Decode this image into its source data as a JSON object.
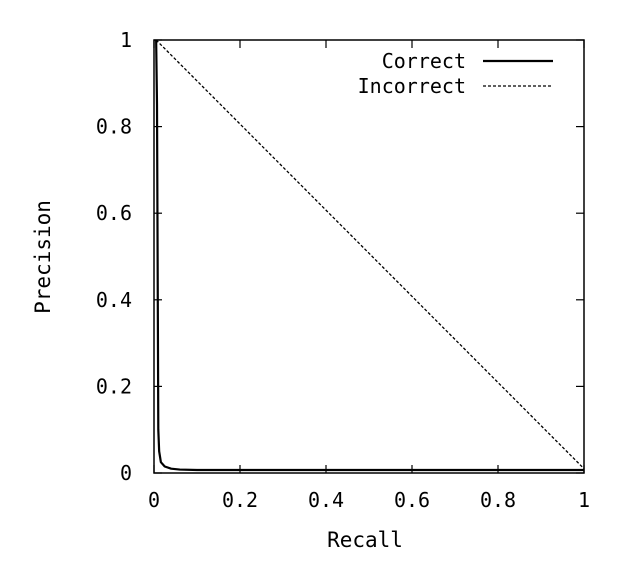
{
  "chart_data": {
    "type": "line",
    "xlabel": "Recall",
    "ylabel": "Precision",
    "xlim": [
      0,
      1
    ],
    "ylim": [
      0,
      1
    ],
    "x_ticks": [
      "0",
      "0.2",
      "0.4",
      "0.6",
      "0.8",
      "1"
    ],
    "y_ticks": [
      "0",
      "0.2",
      "0.4",
      "0.6",
      "0.8",
      "1"
    ],
    "grid": false,
    "legend_position": "top-right",
    "series": [
      {
        "name": "Correct",
        "style": "solid",
        "x": [
          0.005,
          0.007,
          0.008,
          0.009,
          0.01,
          0.012,
          0.016,
          0.025,
          0.04,
          0.06,
          0.1,
          0.3,
          0.6,
          1.0
        ],
        "y": [
          1.0,
          0.85,
          0.6,
          0.35,
          0.1,
          0.05,
          0.025,
          0.015,
          0.01,
          0.008,
          0.007,
          0.007,
          0.007,
          0.007
        ]
      },
      {
        "name": "Incorrect",
        "style": "dashed",
        "x": [
          0.005,
          1.0
        ],
        "y": [
          1.0,
          0.01
        ]
      }
    ]
  }
}
